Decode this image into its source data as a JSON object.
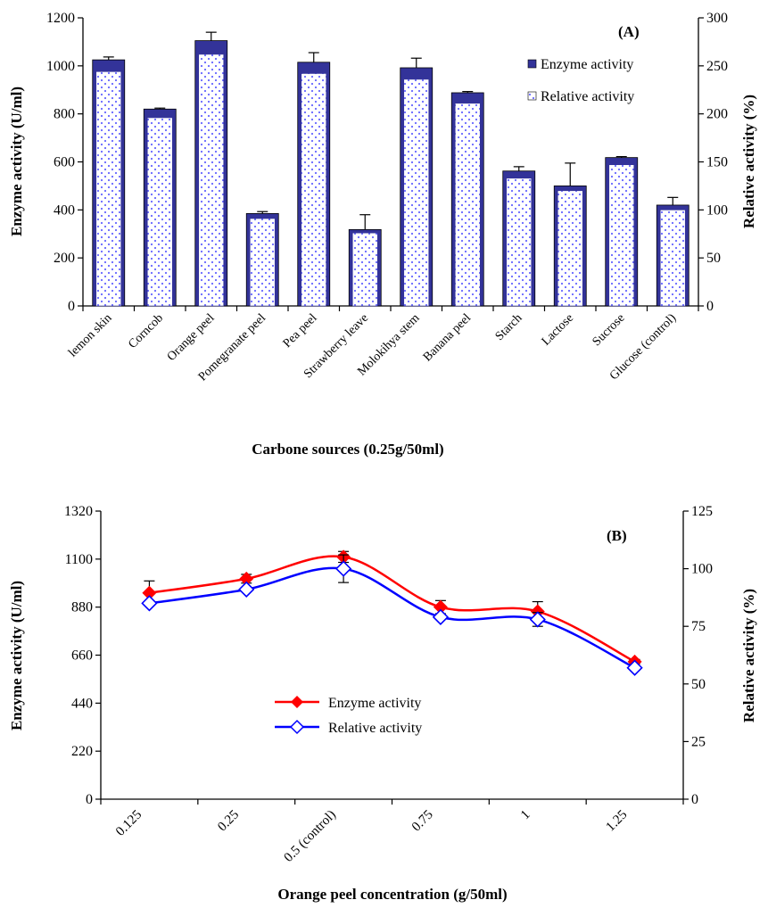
{
  "chart_data": [
    {
      "type": "bar",
      "panel_label": "(A)",
      "categories": [
        "lemon skin",
        "Corncob",
        "Orange peel",
        "Pomegranate  peel",
        "Pea peel",
        "Strawberry leave",
        "Molokihya stem",
        "Banana  peel",
        "Starch",
        "Lactose",
        "Sucrose",
        "Glucose (control)"
      ],
      "series": [
        {
          "name": "Enzyme activity",
          "axis": "left",
          "values": [
            1025,
            820,
            1105,
            385,
            1015,
            318,
            992,
            888,
            562,
            500,
            618,
            420
          ],
          "errors": [
            12,
            4,
            35,
            8,
            40,
            62,
            40,
            5,
            18,
            95,
            4,
            32
          ]
        },
        {
          "name": "Relative activity",
          "axis": "right",
          "values": [
            244,
            196,
            262,
            91,
            242,
            76,
            236,
            211,
            133,
            120,
            147,
            100
          ]
        }
      ],
      "colors": {
        "enzyme": "#333399",
        "relative_dots": "#6666ff"
      },
      "xlabel": "Carbone sources (0.25g/50ml)",
      "ylabel": "Enzyme activity (U/ml)",
      "y2label": "Relative activity (%)",
      "ylim": [
        0,
        1200
      ],
      "yticks": [
        0,
        200,
        400,
        600,
        800,
        1000,
        1200
      ],
      "y2lim": [
        0,
        300
      ],
      "y2ticks": [
        0,
        50,
        100,
        150,
        200,
        250,
        300
      ],
      "legend_position": "top-right",
      "grid": false
    },
    {
      "type": "line",
      "panel_label": "(B)",
      "categories": [
        "0.125",
        "0.25",
        "0.5 (control)",
        "0.75",
        "1",
        "1.25"
      ],
      "series": [
        {
          "name": "Enzyme activity",
          "axis": "left",
          "color": "#ff0000",
          "marker": "filled-diamond",
          "values": [
            945,
            1010,
            1110,
            880,
            860,
            630
          ],
          "errors": [
            55,
            20,
            25,
            30,
            45,
            10
          ]
        },
        {
          "name": "Relative activity",
          "axis": "right",
          "color": "#0000ff",
          "marker": "open-diamond",
          "values": [
            85,
            91,
            100,
            79,
            78,
            57
          ],
          "errors": [
            0,
            0,
            6,
            0,
            3,
            0
          ]
        }
      ],
      "xlabel": "Orange peel concentration (g/50ml)",
      "ylabel": "Enzyme activity (U/ml)",
      "y2label": "Relative activity (%)",
      "ylim": [
        0,
        1320
      ],
      "yticks": [
        0,
        220,
        440,
        660,
        880,
        1100,
        1320
      ],
      "y2lim": [
        0,
        125
      ],
      "y2ticks": [
        0,
        25,
        50,
        75,
        100,
        125
      ],
      "legend_position": "center-left",
      "grid": false
    }
  ]
}
